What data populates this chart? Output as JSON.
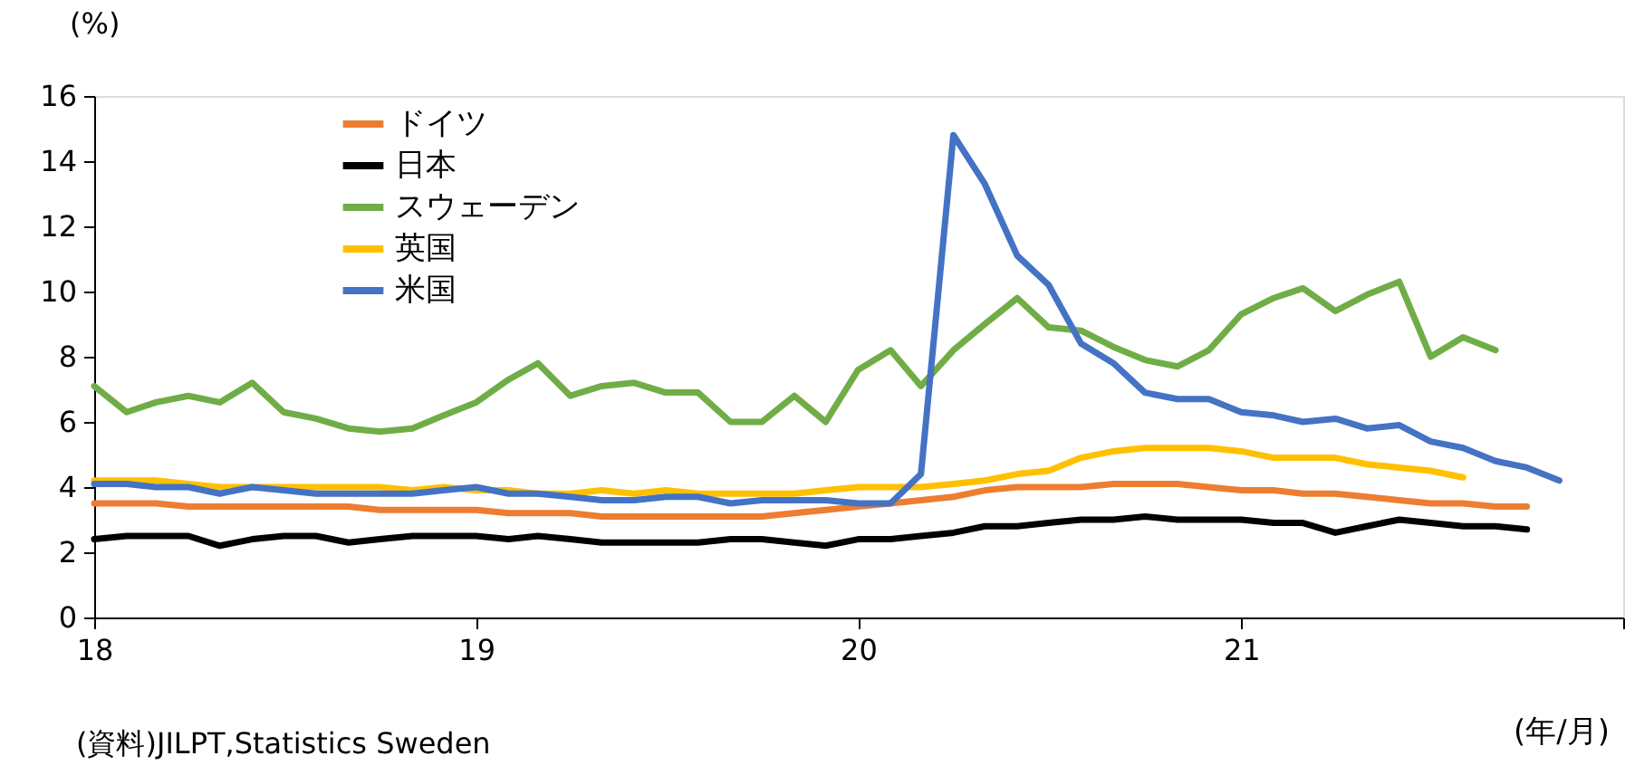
{
  "chart_data": {
    "type": "line",
    "ylabel": "(%)",
    "xlabel": "(年/月)",
    "annotations": [
      "(資料)JILPT,Statistics Sweden"
    ],
    "x": [
      "2018-01",
      "2018-02",
      "2018-03",
      "2018-04",
      "2018-05",
      "2018-06",
      "2018-07",
      "2018-08",
      "2018-09",
      "2018-10",
      "2018-11",
      "2018-12",
      "2019-01",
      "2019-02",
      "2019-03",
      "2019-04",
      "2019-05",
      "2019-06",
      "2019-07",
      "2019-08",
      "2019-09",
      "2019-10",
      "2019-11",
      "2019-12",
      "2020-01",
      "2020-02",
      "2020-03",
      "2020-04",
      "2020-05",
      "2020-06",
      "2020-07",
      "2020-08",
      "2020-09",
      "2020-10",
      "2020-11",
      "2020-12",
      "2021-01",
      "2021-02",
      "2021-03",
      "2021-04",
      "2021-05",
      "2021-06",
      "2021-07",
      "2021-08",
      "2021-09",
      "2021-10",
      "2021-11"
    ],
    "series": [
      {
        "name": "ドイツ",
        "color": "#ed7d31",
        "values": [
          3.5,
          3.5,
          3.5,
          3.4,
          3.4,
          3.4,
          3.4,
          3.4,
          3.4,
          3.3,
          3.3,
          3.3,
          3.3,
          3.2,
          3.2,
          3.2,
          3.1,
          3.1,
          3.1,
          3.1,
          3.1,
          3.1,
          3.2,
          3.3,
          3.4,
          3.5,
          3.6,
          3.7,
          3.9,
          4.0,
          4.0,
          4.0,
          4.1,
          4.1,
          4.1,
          4.0,
          3.9,
          3.9,
          3.8,
          3.8,
          3.7,
          3.6,
          3.5,
          3.5,
          3.4,
          3.4,
          null
        ]
      },
      {
        "name": "日本",
        "color": "#000000",
        "values": [
          2.4,
          2.5,
          2.5,
          2.5,
          2.2,
          2.4,
          2.5,
          2.5,
          2.3,
          2.4,
          2.5,
          2.5,
          2.5,
          2.4,
          2.5,
          2.4,
          2.3,
          2.3,
          2.3,
          2.3,
          2.4,
          2.4,
          2.3,
          2.2,
          2.4,
          2.4,
          2.5,
          2.6,
          2.8,
          2.8,
          2.9,
          3.0,
          3.0,
          3.1,
          3.0,
          3.0,
          3.0,
          2.9,
          2.9,
          2.6,
          2.8,
          3.0,
          2.9,
          2.8,
          2.8,
          2.7,
          null
        ]
      },
      {
        "name": "スウェーデン",
        "color": "#70ad47",
        "values": [
          7.1,
          6.3,
          6.6,
          6.8,
          6.6,
          7.2,
          6.3,
          6.1,
          5.8,
          5.7,
          5.8,
          6.2,
          6.6,
          7.3,
          7.8,
          6.8,
          7.1,
          7.2,
          6.9,
          6.9,
          6.0,
          6.0,
          6.8,
          6.0,
          7.6,
          8.2,
          7.1,
          8.2,
          9.0,
          9.8,
          8.9,
          8.8,
          8.3,
          7.9,
          7.7,
          8.2,
          9.3,
          9.8,
          10.1,
          9.4,
          9.9,
          10.3,
          8.0,
          8.6,
          8.2,
          null,
          null
        ]
      },
      {
        "name": "英国",
        "color": "#ffc000",
        "values": [
          4.2,
          4.2,
          4.2,
          4.1,
          4.0,
          4.0,
          4.0,
          4.0,
          4.0,
          4.0,
          3.9,
          4.0,
          3.9,
          3.9,
          3.8,
          3.8,
          3.9,
          3.8,
          3.9,
          3.8,
          3.8,
          3.8,
          3.8,
          3.9,
          4.0,
          4.0,
          4.0,
          4.1,
          4.2,
          4.4,
          4.5,
          4.9,
          5.1,
          5.2,
          5.2,
          5.2,
          5.1,
          4.9,
          4.9,
          4.9,
          4.7,
          4.6,
          4.5,
          4.3,
          null,
          null,
          null
        ]
      },
      {
        "name": "米国",
        "color": "#4472c4",
        "values": [
          4.1,
          4.1,
          4.0,
          4.0,
          3.8,
          4.0,
          3.9,
          3.8,
          3.8,
          3.8,
          3.8,
          3.9,
          4.0,
          3.8,
          3.8,
          3.7,
          3.6,
          3.6,
          3.7,
          3.7,
          3.5,
          3.6,
          3.6,
          3.6,
          3.5,
          3.5,
          4.4,
          14.8,
          13.3,
          11.1,
          10.2,
          8.4,
          7.8,
          6.9,
          6.7,
          6.7,
          6.3,
          6.2,
          6.0,
          6.1,
          5.8,
          5.9,
          5.4,
          5.2,
          4.8,
          4.6,
          4.2
        ]
      }
    ],
    "xlim": [
      "2018-01",
      "2022-01"
    ],
    "xticks": [
      {
        "value": "2018-01",
        "label": "18"
      },
      {
        "value": "2019-01",
        "label": "19"
      },
      {
        "value": "2020-01",
        "label": "20"
      },
      {
        "value": "2021-01",
        "label": "21"
      },
      {
        "value": "2022-01",
        "label": null
      }
    ],
    "ylim": [
      0,
      16
    ],
    "yticks": [
      0,
      2,
      4,
      6,
      8,
      10,
      12,
      14,
      16
    ],
    "legend": "top left",
    "grid": false,
    "marker": "none",
    "line_style": "solid"
  }
}
